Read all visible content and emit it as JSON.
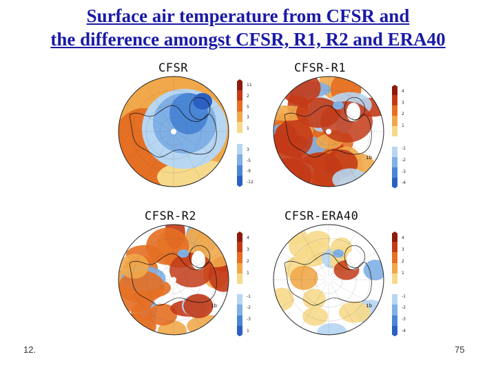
{
  "slide": {
    "title_line1": "Surface air temperature from CFSR and",
    "title_line2": "the difference amongst CFSR, R1, R2 and ERA40",
    "footer_left": "12.",
    "page_number": "75"
  },
  "colors": {
    "title": "#1a1aa6",
    "palette": [
      "#2b5fc2",
      "#4a86d6",
      "#7fb0e6",
      "#b7d6f2",
      "#ffffff",
      "#f6d98a",
      "#f1a84a",
      "#e56f22",
      "#c43a16",
      "#8e1a0c"
    ]
  },
  "maps": [
    {
      "id": "cfsr",
      "title": "CFSR",
      "colorbar_ticks": [
        "11",
        "2",
        "5",
        "3",
        "1",
        "",
        "3",
        "-5",
        "-9",
        "-12"
      ],
      "pattern": "absolute",
      "lowercase_labels": []
    },
    {
      "id": "cfsr-r1",
      "title": "CFSR-R1",
      "colorbar_ticks": [
        "4",
        "3",
        "2",
        "1",
        "",
        "-1",
        "-2",
        "-3",
        "-4"
      ],
      "pattern": "diff-strong",
      "lowercase_labels": [
        "1b"
      ]
    },
    {
      "id": "cfsr-r2",
      "title": "CFSR-R2",
      "colorbar_ticks": [
        "4",
        "3",
        "2",
        "1",
        "",
        "-1",
        "-2",
        "-3",
        "1"
      ],
      "pattern": "diff-medium",
      "lowercase_labels": [
        "1b"
      ]
    },
    {
      "id": "cfsr-era40",
      "title": "CFSR-ERA40",
      "colorbar_ticks": [
        "4",
        "3",
        "2",
        "1",
        "",
        "-1",
        "-2",
        "-3",
        "-4"
      ],
      "pattern": "diff-weak",
      "lowercase_labels": [
        "1b"
      ]
    }
  ]
}
